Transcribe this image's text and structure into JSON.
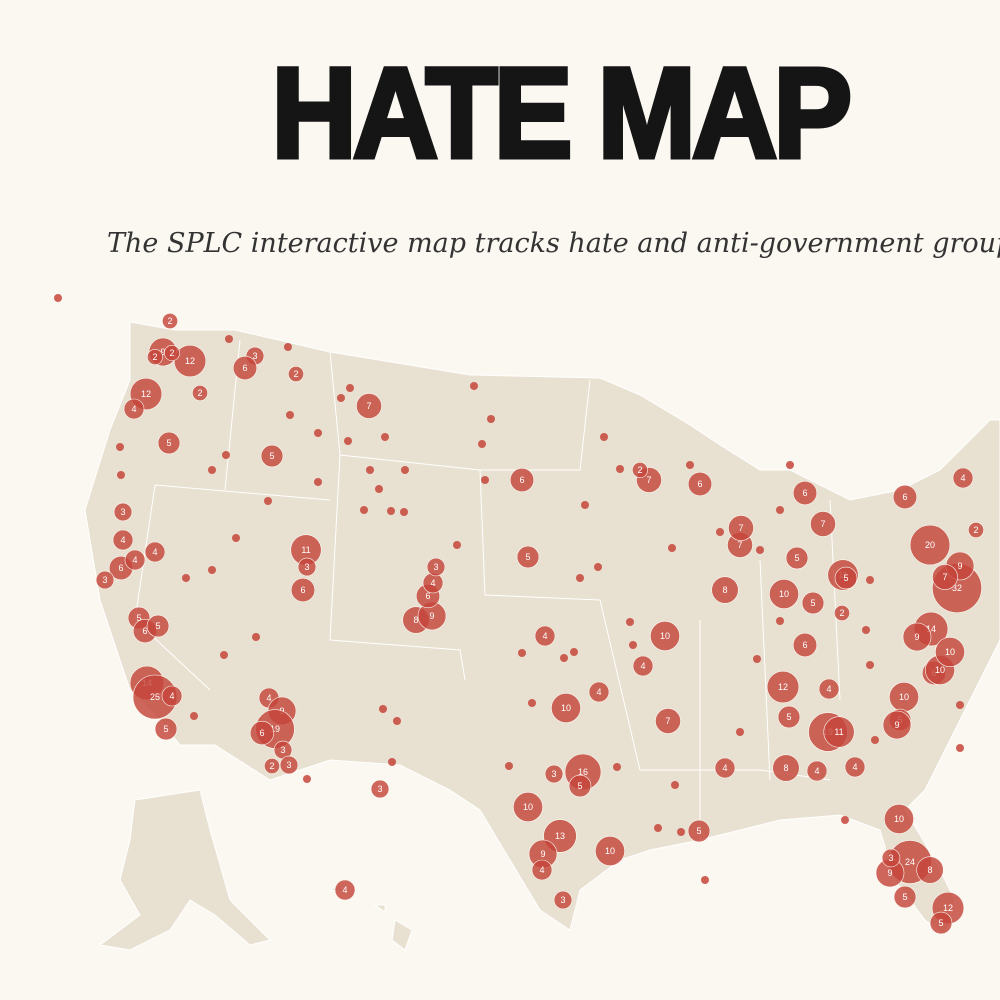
{
  "header": {
    "title": "HATE MAP",
    "subtitle": "The SPLC interactive map tracks hate and anti-government groups"
  },
  "map": {
    "clusters": [
      {
        "count": 9
      },
      {
        "count": 12
      },
      {
        "count": 2
      },
      {
        "count": 2
      },
      {
        "count": 2
      },
      {
        "count": 3
      },
      {
        "count": 6
      },
      {
        "count": 12
      },
      {
        "count": 4
      },
      {
        "count": 5
      },
      {
        "count": 5
      },
      {
        "count": 2
      },
      {
        "count": 2
      },
      {
        "count": 7
      },
      {
        "count": 11
      },
      {
        "count": 3
      },
      {
        "count": 6
      },
      {
        "count": 3
      },
      {
        "count": 4
      },
      {
        "count": 6
      },
      {
        "count": 4
      },
      {
        "count": 4
      },
      {
        "count": 3
      },
      {
        "count": 5
      },
      {
        "count": 6
      },
      {
        "count": 5
      },
      {
        "count": 14
      },
      {
        "count": 25
      },
      {
        "count": 4
      },
      {
        "count": 5
      },
      {
        "count": 4
      },
      {
        "count": 9
      },
      {
        "count": 19
      },
      {
        "count": 6
      },
      {
        "count": 3
      },
      {
        "count": 3
      },
      {
        "count": 2
      },
      {
        "count": 6
      },
      {
        "count": 5
      },
      {
        "count": 8
      },
      {
        "count": 9
      },
      {
        "count": 6
      },
      {
        "count": 4
      },
      {
        "count": 3
      },
      {
        "count": 4
      },
      {
        "count": 10
      },
      {
        "count": 4
      },
      {
        "count": 10
      },
      {
        "count": 4
      },
      {
        "count": 7
      },
      {
        "count": 16
      },
      {
        "count": 3
      },
      {
        "count": 5
      },
      {
        "count": 10
      },
      {
        "count": 13
      },
      {
        "count": 9
      },
      {
        "count": 4
      },
      {
        "count": 10
      },
      {
        "count": 3
      },
      {
        "count": 4
      },
      {
        "count": 3
      },
      {
        "count": 6
      },
      {
        "count": 7
      },
      {
        "count": 2
      },
      {
        "count": 8
      },
      {
        "count": 10
      },
      {
        "count": 12
      },
      {
        "count": 5
      },
      {
        "count": 19
      },
      {
        "count": 11
      },
      {
        "count": 8
      },
      {
        "count": 4
      },
      {
        "count": 5
      },
      {
        "count": 11
      },
      {
        "count": 5
      },
      {
        "count": 2
      },
      {
        "count": 10
      },
      {
        "count": 5
      },
      {
        "count": 9
      },
      {
        "count": 14
      },
      {
        "count": 9
      },
      {
        "count": 20
      },
      {
        "count": 32
      },
      {
        "count": 9
      },
      {
        "count": 7
      },
      {
        "count": 2
      },
      {
        "count": 4
      },
      {
        "count": 6
      },
      {
        "count": 10
      },
      {
        "count": 24
      },
      {
        "count": 8
      },
      {
        "count": 9
      },
      {
        "count": 12
      },
      {
        "count": 5
      },
      {
        "count": 3
      },
      {
        "count": 5
      },
      {
        "count": 4
      },
      {
        "count": 7
      },
      {
        "count": 7
      },
      {
        "count": 6
      },
      {
        "count": 7
      },
      {
        "count": 5
      },
      {
        "count": 5
      },
      {
        "count": 6
      },
      {
        "count": 6
      },
      {
        "count": 10
      },
      {
        "count": 10
      },
      {
        "count": 4
      },
      {
        "count": 4
      }
    ]
  }
}
